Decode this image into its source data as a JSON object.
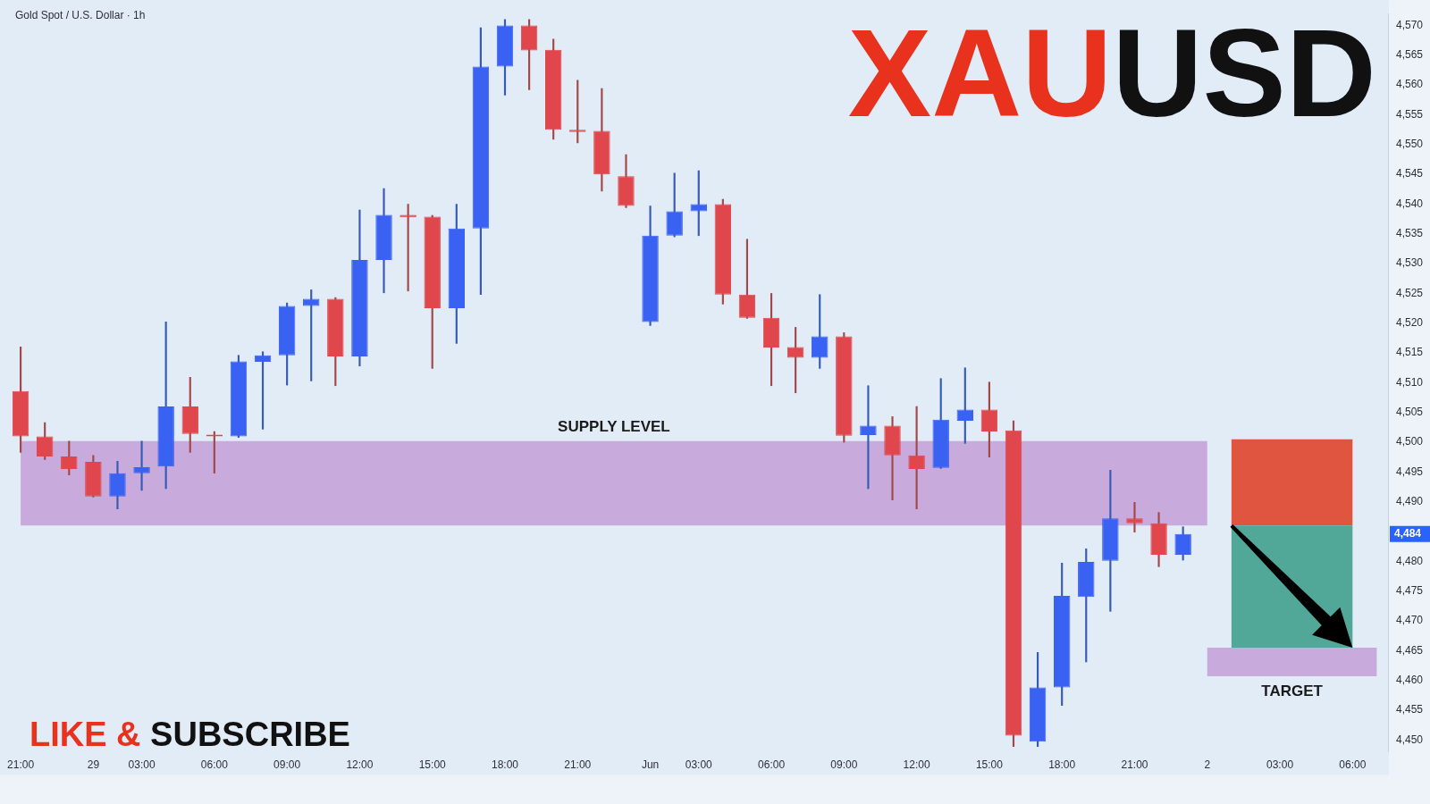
{
  "chart_data": {
    "type": "candlestick",
    "title": "XAUUSD",
    "subtitle": "Gold Spot / U.S. Dollar · 1h",
    "annotations": [
      "LIKE & SUBSCRIBE",
      "4,484"
    ],
    "categories": [
      "21:00",
      null,
      null,
      "29",
      null,
      "03:00",
      null,
      null,
      "06:00",
      null,
      null,
      "09:00",
      null,
      null,
      "12:00",
      null,
      null,
      "15:00",
      null,
      null,
      "18:00",
      null,
      null,
      "21:00",
      null,
      null,
      "Jun",
      null,
      "03:00",
      null,
      null,
      "06:00",
      null,
      null,
      "09:00",
      null,
      null,
      "12:00",
      null,
      null,
      "15:00",
      null,
      null,
      "18:00",
      null,
      null,
      "21:00",
      null,
      null,
      "2",
      null,
      null,
      "03:00",
      null,
      null,
      "06:00",
      null
    ],
    "ohlc": [
      [
        4508.6,
        4516.0,
        4498.3,
        4501.0
      ],
      [
        4501.0,
        4503.3,
        4497.1,
        4497.6
      ],
      [
        4497.6,
        4500.2,
        4494.5,
        4495.5
      ],
      [
        4496.7,
        4497.8,
        4490.8,
        4490.9
      ],
      [
        4490.9,
        4496.8,
        4488.8,
        4494.8
      ],
      [
        4494.8,
        4500.2,
        4491.9,
        4495.8
      ],
      [
        4495.9,
        4520.2,
        4492.2,
        4506.0
      ],
      [
        4506.0,
        4510.9,
        4498.3,
        4501.4
      ],
      [
        4501.3,
        4501.8,
        4494.8,
        4501.0
      ],
      [
        4501.0,
        4514.6,
        4500.8,
        4513.6
      ],
      [
        4513.5,
        4515.2,
        4502.2,
        4514.6
      ],
      [
        4514.6,
        4523.4,
        4509.6,
        4522.9
      ],
      [
        4522.9,
        4525.6,
        4510.3,
        4524.1
      ],
      [
        4524.1,
        4524.3,
        4509.5,
        4514.4
      ],
      [
        4514.4,
        4539.0,
        4512.8,
        4530.6
      ],
      [
        4530.6,
        4542.6,
        4525.1,
        4538.2
      ],
      [
        4538.2,
        4540.0,
        4525.4,
        4537.8
      ],
      [
        4537.9,
        4538.1,
        4512.4,
        4522.5
      ],
      [
        4522.5,
        4540.0,
        4516.6,
        4535.9
      ],
      [
        4535.9,
        4569.6,
        4524.8,
        4563.1
      ],
      [
        4563.1,
        4571.0,
        4558.3,
        4570.0
      ],
      [
        4570.0,
        4571.0,
        4559.2,
        4565.8
      ],
      [
        4565.9,
        4567.7,
        4550.9,
        4552.5
      ],
      [
        4552.5,
        4560.8,
        4550.3,
        4552.1
      ],
      [
        4552.3,
        4559.4,
        4542.2,
        4545.0
      ],
      [
        4544.7,
        4548.3,
        4539.4,
        4539.7
      ],
      [
        4520.2,
        4539.7,
        4519.6,
        4534.7
      ],
      [
        4534.7,
        4545.2,
        4534.5,
        4538.8
      ],
      [
        4538.8,
        4545.6,
        4534.7,
        4540.0
      ],
      [
        4540.0,
        4540.8,
        4523.2,
        4524.8
      ],
      [
        4524.8,
        4534.1,
        4520.8,
        4520.9
      ],
      [
        4520.9,
        4525.0,
        4509.5,
        4515.9
      ],
      [
        4516.0,
        4519.3,
        4508.3,
        4514.2
      ],
      [
        4514.2,
        4524.8,
        4512.4,
        4517.8
      ],
      [
        4517.8,
        4518.4,
        4500.0,
        4501.1
      ],
      [
        4501.2,
        4509.5,
        4492.2,
        4502.8
      ],
      [
        4502.8,
        4504.3,
        4490.3,
        4497.8
      ],
      [
        4497.8,
        4506.0,
        4488.8,
        4495.5
      ],
      [
        4495.7,
        4510.7,
        4495.6,
        4503.8
      ],
      [
        4503.6,
        4512.5,
        4499.8,
        4505.5
      ],
      [
        4505.5,
        4510.1,
        4497.5,
        4501.8
      ],
      [
        4502.0,
        4503.6,
        4448.9,
        4450.7
      ],
      [
        4449.7,
        4464.7,
        4448.9,
        4458.8
      ],
      [
        4458.8,
        4479.7,
        4455.8,
        4474.2
      ],
      [
        4474.0,
        4482.1,
        4463.1,
        4479.9
      ],
      [
        4480.1,
        4495.3,
        4471.6,
        4487.2
      ],
      [
        4487.2,
        4489.9,
        4484.9,
        4486.4
      ],
      [
        4486.4,
        4488.2,
        4479.1,
        4481.1
      ],
      [
        4481.1,
        4485.8,
        4480.2,
        4484.6
      ],
      null,
      null,
      null,
      null,
      null,
      null,
      null,
      null
    ],
    "colors": [
      "#e0474c",
      "#e0474c",
      "#e0474c",
      "#e0474c",
      "#3a62f2",
      "#3a62f2",
      "#3a62f2",
      "#e0474c",
      "#e0474c",
      "#3a62f2",
      "#3a62f2",
      "#3a62f2",
      "#3a62f2",
      "#e0474c",
      "#3a62f2",
      "#3a62f2",
      "#e0474c",
      "#e0474c",
      "#3a62f2",
      "#3a62f2",
      "#3a62f2",
      "#e0474c",
      "#e0474c",
      "#e0474c",
      "#e0474c",
      "#e0474c",
      "#3a62f2",
      "#3a62f2",
      "#3a62f2",
      "#e0474c",
      "#e0474c",
      "#e0474c",
      "#e0474c",
      "#3a62f2",
      "#e0474c",
      "#3a62f2",
      "#e0474c",
      "#e0474c",
      "#3a62f2",
      "#3a62f2",
      "#e0474c",
      "#e0474c",
      "#3a62f2",
      "#3a62f2",
      "#3a62f2",
      "#3a62f2",
      "#e0474c",
      "#e0474c",
      "#3a62f2",
      null,
      null,
      null,
      null,
      null,
      null,
      null,
      null
    ],
    "ylim": [
      4448,
      4572
    ],
    "yticks": [
      {
        "value": 4450,
        "label": "4,450"
      },
      {
        "value": 4455,
        "label": "4,455"
      },
      {
        "value": 4460,
        "label": "4,460"
      },
      {
        "value": 4465,
        "label": "4,465"
      },
      {
        "value": 4470,
        "label": "4,470"
      },
      {
        "value": 4475,
        "label": "4,475"
      },
      {
        "value": 4480,
        "label": "4,480"
      },
      {
        "value": 4490,
        "label": "4,490"
      },
      {
        "value": 4495,
        "label": "4,495"
      },
      {
        "value": 4500,
        "label": "4,500"
      },
      {
        "value": 4505,
        "label": "4,505"
      },
      {
        "value": 4510,
        "label": "4,510"
      },
      {
        "value": 4515,
        "label": "4,515"
      },
      {
        "value": 4520,
        "label": "4,520"
      },
      {
        "value": 4525,
        "label": "4,525"
      },
      {
        "value": 4530,
        "label": "4,530"
      },
      {
        "value": 4535,
        "label": "4,535"
      },
      {
        "value": 4540,
        "label": "4,540"
      },
      {
        "value": 4545,
        "label": "4,545"
      },
      {
        "value": 4550,
        "label": "4,550"
      },
      {
        "value": 4555,
        "label": "4,555"
      },
      {
        "value": 4560,
        "label": "4,560"
      },
      {
        "value": 4565,
        "label": "4,565"
      },
      {
        "value": 4570,
        "label": "4,570"
      }
    ],
    "bands": [
      {
        "axis": "y",
        "from": 4486.0,
        "to": 4500.2,
        "label": "SUPPLY LEVEL",
        "color": "#c8aadc"
      },
      {
        "axis": "y",
        "from": 4486.0,
        "to": 4500.5,
        "color": "#e05540"
      },
      {
        "axis": "y",
        "from": 4465.5,
        "to": 4486.0,
        "color": "#52a898"
      },
      {
        "axis": "y",
        "from": 4460.7,
        "to": 4465.5,
        "label": "TARGET",
        "color": "#c8aadc"
      }
    ]
  }
}
